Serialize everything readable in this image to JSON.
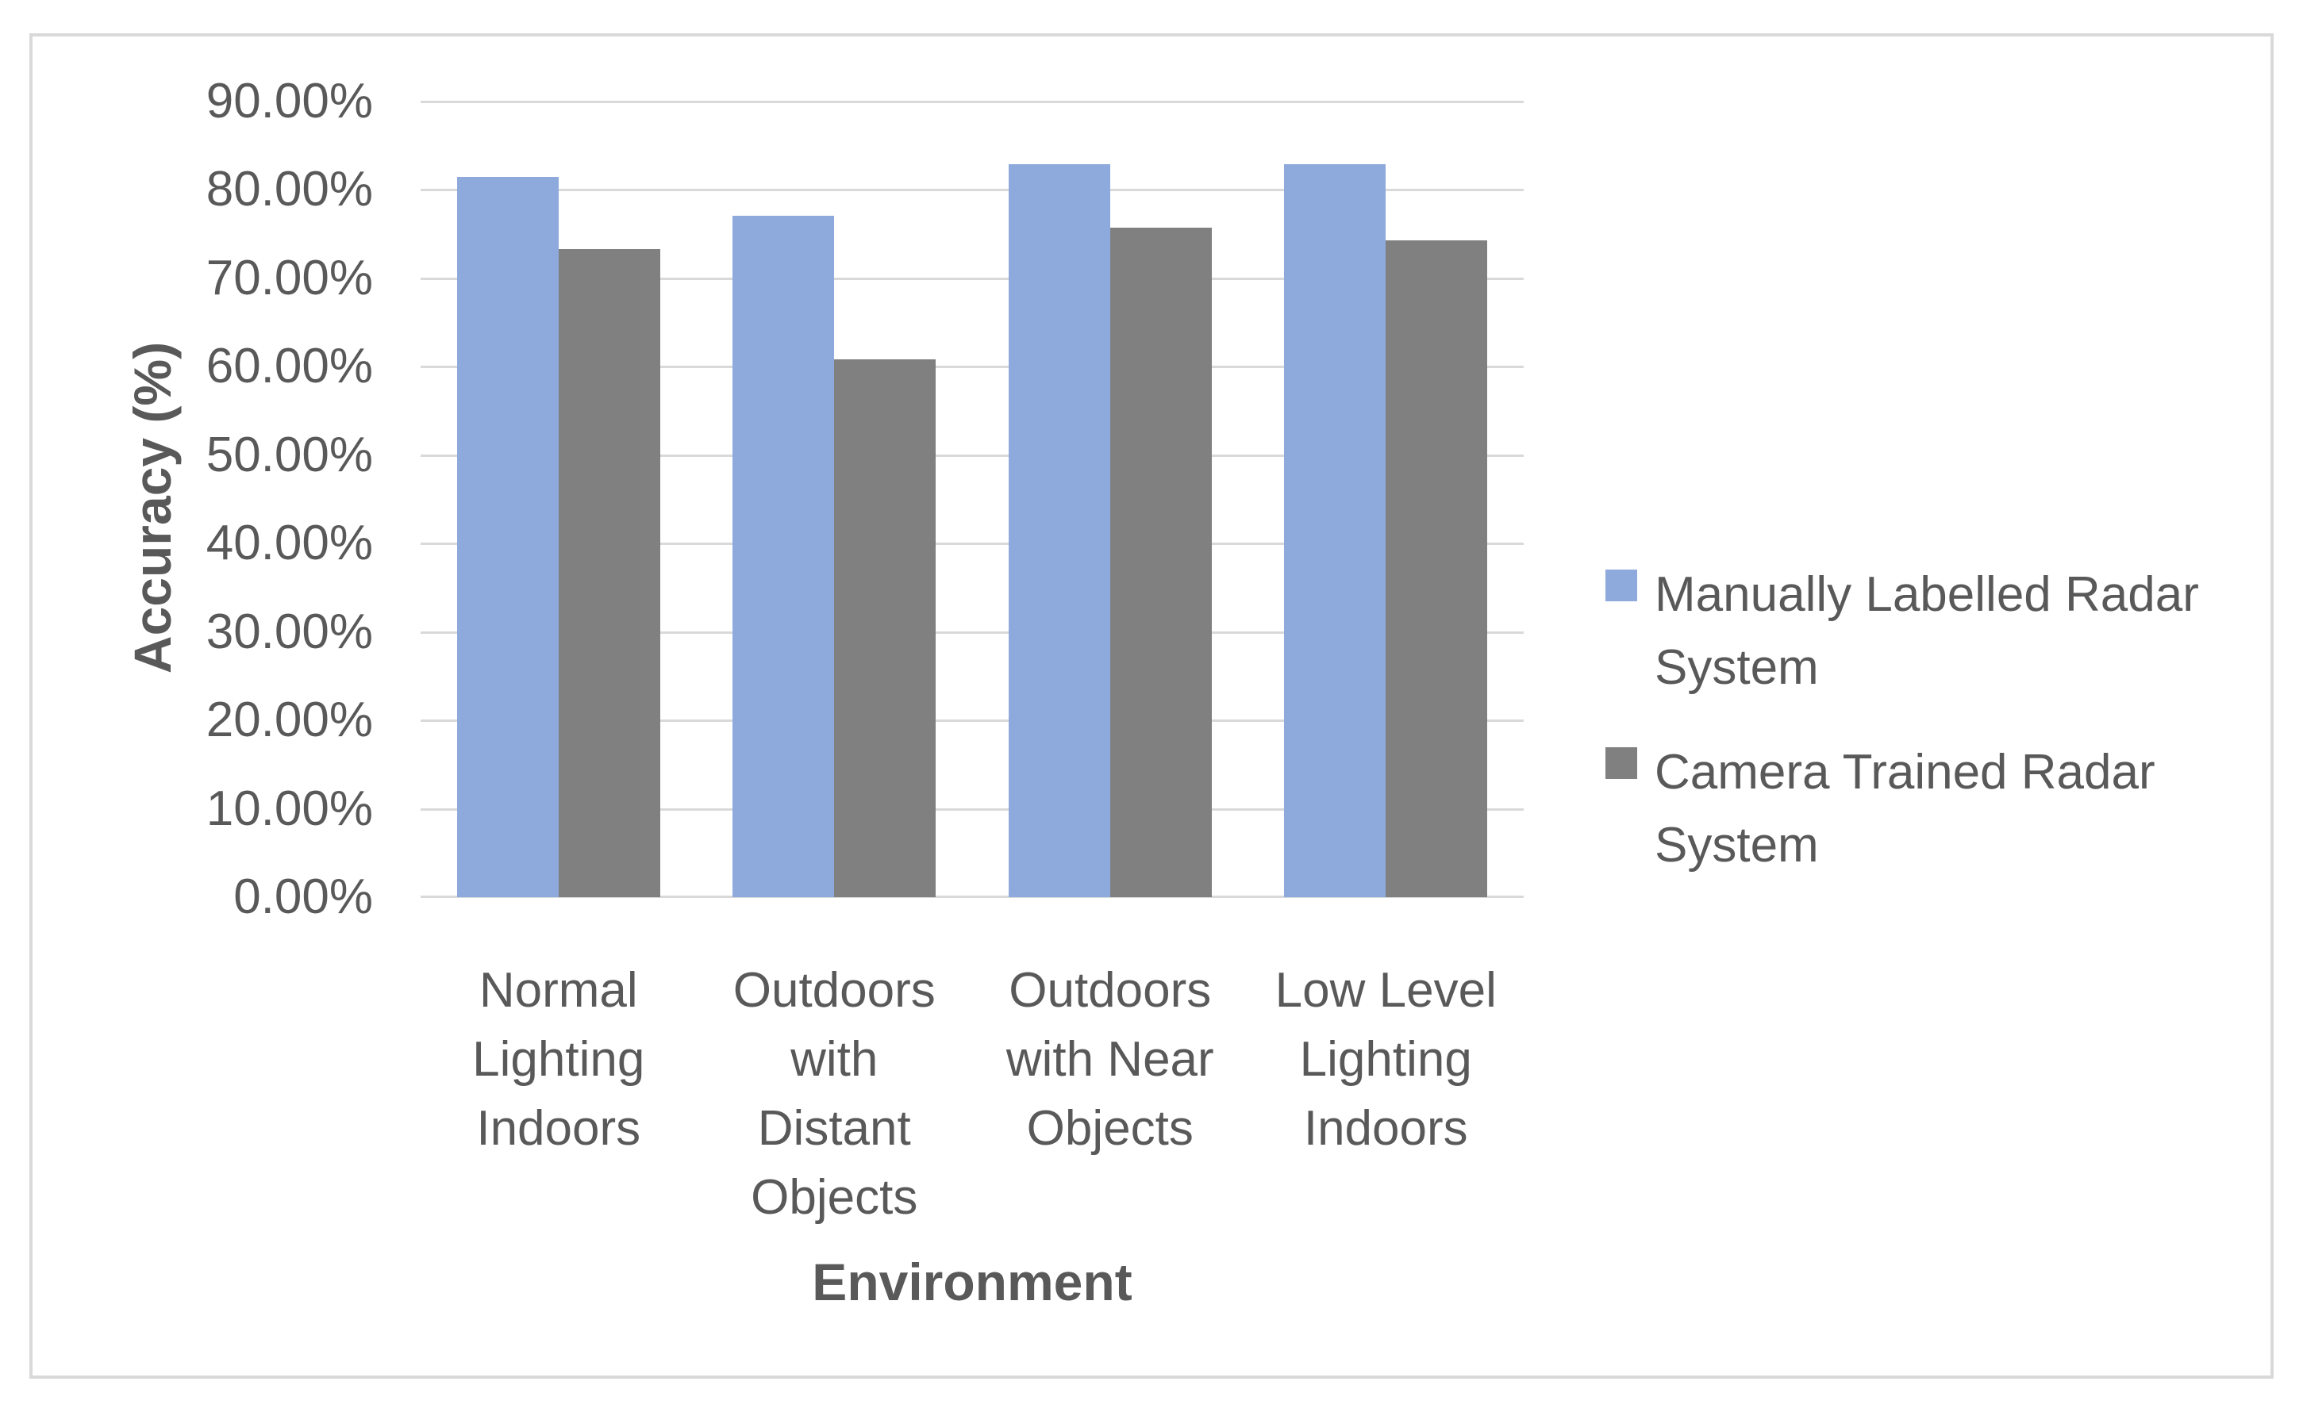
{
  "chart_data": {
    "type": "bar",
    "title": "",
    "categories": [
      "Normal Lighting Indoors",
      "Outdoors with Distant Objects",
      "Outdoors with Near Objects",
      "Low Level Lighting Indoors"
    ],
    "categories_wrapped": [
      "Normal\nLighting\nIndoors",
      "Outdoors\nwith\nDistant\nObjects",
      "Outdoors\nwith Near\nObjects",
      "Low Level\nLighting\nIndoors"
    ],
    "series": [
      {
        "name": "Manually Labelled Radar System",
        "name_wrapped": "Manually Labelled Radar\nSystem",
        "color": "#8EA9DB",
        "values": [
          81.5,
          77.1,
          82.9,
          82.9
        ]
      },
      {
        "name": "Camera Trained Radar System",
        "name_wrapped": "Camera Trained Radar\nSystem",
        "color": "#808080",
        "values": [
          73.3,
          60.8,
          75.7,
          74.3
        ]
      }
    ],
    "xlabel": "Environment",
    "ylabel": "Accuracy (%)",
    "ylim": [
      0,
      90
    ],
    "ytick_step": 10,
    "ytick_labels": [
      "0.00%",
      "10.00%",
      "20.00%",
      "30.00%",
      "40.00%",
      "50.00%",
      "60.00%",
      "70.00%",
      "80.00%",
      "90.00%"
    ],
    "grid": true,
    "legend_position": "right"
  },
  "colors": {
    "text": "#595959",
    "gridline": "#d9d9d9",
    "chart_border": "#d9d9d9",
    "background": "#ffffff"
  }
}
